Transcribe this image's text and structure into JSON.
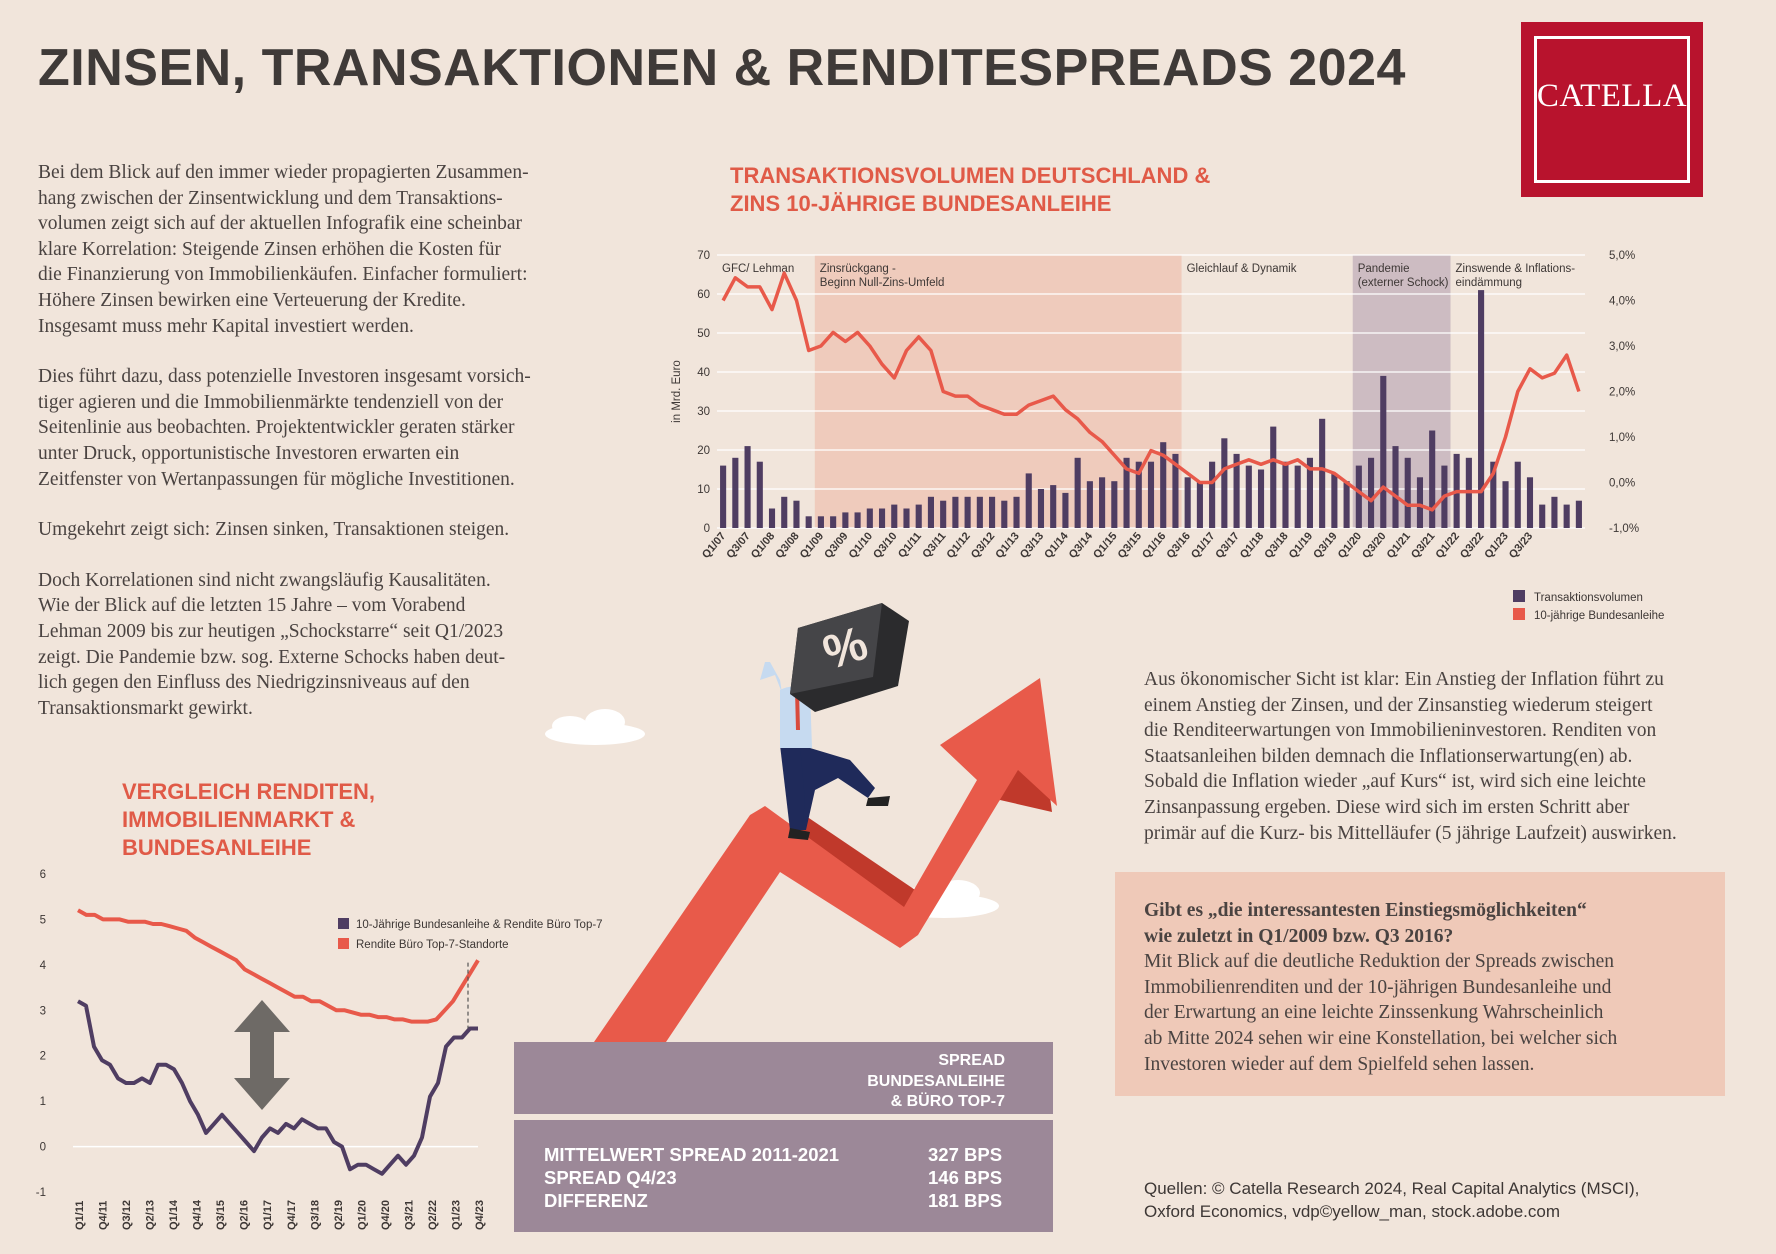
{
  "header": {
    "title": "ZINSEN, TRANSAKTIONEN & RENDITESPREADS 2024",
    "logo_text": "CATELLA"
  },
  "intro": {
    "paragraphs": [
      [
        "Bei dem Blick auf den immer wieder propagierten Zusammen-",
        "hang zwischen der Zinsentwicklung und dem Transaktions-",
        "volumen zeigt sich auf der aktuellen Infografik eine scheinbar",
        "klare Korrelation: Steigende Zinsen erhöhen die Kosten für",
        "die Finanzierung von Immobilienkäufen. Einfacher formuliert:",
        "Höhere Zinsen bewirken eine Verteuerung der Kredite.",
        "Insgesamt muss mehr Kapital investiert werden."
      ],
      [
        "Dies führt dazu, dass potenzielle Investoren insgesamt vorsich-",
        "tiger agieren und die Immobilienmärkte tendenziell von der",
        "Seitenlinie aus beobachten. Projektentwickler geraten stärker",
        "unter Druck, opportunistische Investoren erwarten ein",
        "Zeitfenster von Wertanpassungen für mögliche Investitionen."
      ],
      [
        "Umgekehrt zeigt sich: Zinsen sinken, Transaktionen steigen."
      ],
      [
        "Doch Korrelationen sind nicht zwangsläufig Kausalitäten.",
        "Wie der Blick auf die letzten 15 Jahre – vom Vorabend",
        "Lehman 2009 bis zur heutigen „Schockstarre“ seit Q1/2023",
        "zeigt. Die Pandemie bzw. sog. Externe Schocks haben deut-",
        "lich gegen den Einfluss des Niedrigzinsniveaus auf den",
        "Transaktionsmarkt gewirkt."
      ]
    ]
  },
  "right_text": [
    "Aus ökonomischer Sicht ist klar: Ein Anstieg der Inflation führt zu",
    "einem Anstieg der Zinsen, und der Zinsanstieg wiederum steigert",
    "die Renditeerwartungen von Immobilieninvestoren. Renditen von",
    "Staatsanleihen bilden demnach die Inflationserwartung(en) ab.",
    "Sobald die Inflation wieder „auf Kurs“ ist, wird sich eine leichte",
    "Zinsanpassung ergeben. Diese wird sich im ersten Schritt aber",
    "primär auf die Kurz- bis Mittelläufer (5 jährige Laufzeit) auswirken."
  ],
  "question_box": {
    "question": [
      "Gibt es „die interessantesten Einstiegsmöglichkeiten“",
      "wie zuletzt in Q1/2009 bzw. Q3 2016?"
    ],
    "answer": [
      "Mit Blick auf die deutliche Reduktion der Spreads zwischen",
      "Immobilienrenditen und der 10-jährigen Bundesanleihe und",
      "der Erwartung an eine leichte Zinssenkung Wahrscheinlich",
      "ab Mitte 2024 sehen wir eine Konstellation, bei welcher sich",
      "Investoren wieder auf dem Spielfeld sehen lassen."
    ]
  },
  "spread_box": {
    "title": [
      "SPREAD",
      "BUNDESANLEIHE",
      "& BÜRO TOP-7"
    ],
    "rows": [
      {
        "label": "MITTELWERT SPREAD 2011-2021",
        "value": "327 BPS"
      },
      {
        "label": "SPREAD Q4/23",
        "value": "146 BPS"
      },
      {
        "label": "DIFFERENZ",
        "value": "181 BPS"
      }
    ]
  },
  "illustration": {
    "badge_symbol": "%"
  },
  "sources": [
    "Quellen: © Catella Research 2024, Real Capital Analytics (MSCI),",
    "Oxford Economics, vdp©yellow_man, stock.adobe.com"
  ],
  "colors": {
    "bar": "#4f3d62",
    "line": "#e8594a",
    "accent": "#b8132d",
    "period_highlight": "#efcbbc",
    "period_pandemic": "#cdbcc2",
    "box": "#9c8898"
  },
  "chart_data": [
    {
      "type": "bar+line",
      "title": [
        "TRANSAKTIONSVOLUMEN DEUTSCHLAND &",
        "ZINS 10-JÄHRIGE BUNDESANLEIHE"
      ],
      "ylabel": "in Mrd. Euro",
      "ylim": [
        0,
        70
      ],
      "y2lim": [
        -1,
        5
      ],
      "yticks": [
        "0",
        "10",
        "20",
        "30",
        "40",
        "50",
        "60",
        "70"
      ],
      "y2ticks": [
        "-1,0%",
        "0,0%",
        "1,0%",
        "2,0%",
        "3,0%",
        "4,0%",
        "5,0%"
      ],
      "x_labels": [
        "Q1/07",
        "Q3/07",
        "Q1/08",
        "Q3/08",
        "Q1/09",
        "Q3/09",
        "Q1/10",
        "Q3/10",
        "Q1/11",
        "Q3/11",
        "Q1/12",
        "Q3/12",
        "Q1/13",
        "Q3/13",
        "Q1/14",
        "Q3/14",
        "Q1/15",
        "Q3/15",
        "Q1/16",
        "Q3/16",
        "Q1/17",
        "Q3/17",
        "Q1/18",
        "Q3/18",
        "Q1/19",
        "Q3/19",
        "Q1/20",
        "Q3/20",
        "Q1/21",
        "Q3/21",
        "Q1/22",
        "Q3/22",
        "Q1/23",
        "Q3/23"
      ],
      "periods": [
        {
          "label": "GFC/ Lehman",
          "from": 0,
          "to": 8,
          "shade": "none"
        },
        {
          "label": "Zinsrückgang - Beginn Null-Zins-Umfeld",
          "from": 8,
          "to": 38,
          "shade": "highlight"
        },
        {
          "label": "Gleichlauf & Dynamik",
          "from": 38,
          "to": 52,
          "shade": "none"
        },
        {
          "label": "Pandemie (externer Schock)",
          "from": 52,
          "to": 60,
          "shade": "pandemic"
        },
        {
          "label": "Zinswende & Inflations- eindämmung",
          "from": 60,
          "to": 68,
          "shade": "none"
        }
      ],
      "series": [
        {
          "name": "Transaktionsvolumen",
          "kind": "bar",
          "values": [
            16,
            18,
            21,
            17,
            5,
            8,
            7,
            3,
            3,
            3,
            4,
            4,
            5,
            5,
            6,
            5,
            6,
            8,
            7,
            8,
            8,
            8,
            8,
            7,
            8,
            14,
            10,
            11,
            9,
            18,
            12,
            13,
            12,
            18,
            17,
            17,
            22,
            19,
            13,
            12,
            17,
            23,
            19,
            16,
            15,
            26,
            17,
            16,
            18,
            28,
            14,
            12,
            16,
            18,
            39,
            21,
            18,
            13,
            25,
            16,
            19,
            18,
            61,
            17,
            12,
            17,
            13,
            6,
            8,
            6,
            7
          ]
        },
        {
          "name": "10-jährige Bundesanleihe",
          "kind": "line",
          "axis": "y2",
          "values": [
            4.0,
            4.5,
            4.3,
            4.3,
            3.8,
            4.6,
            4.0,
            2.9,
            3.0,
            3.3,
            3.1,
            3.3,
            3.0,
            2.6,
            2.3,
            2.9,
            3.2,
            2.9,
            2.0,
            1.9,
            1.9,
            1.7,
            1.6,
            1.5,
            1.5,
            1.7,
            1.8,
            1.9,
            1.6,
            1.4,
            1.1,
            0.9,
            0.6,
            0.3,
            0.2,
            0.7,
            0.6,
            0.4,
            0.2,
            0.0,
            0.0,
            0.3,
            0.4,
            0.5,
            0.4,
            0.5,
            0.4,
            0.5,
            0.3,
            0.3,
            0.2,
            0.0,
            -0.2,
            -0.4,
            -0.1,
            -0.3,
            -0.5,
            -0.5,
            -0.6,
            -0.3,
            -0.2,
            -0.2,
            -0.2,
            0.2,
            1.0,
            2.0,
            2.5,
            2.3,
            2.4,
            2.8,
            2.0
          ]
        }
      ],
      "legend": [
        "Transaktionsvolumen",
        "10-jährige Bundesanleihe"
      ],
      "legend_position": "bottom-right"
    },
    {
      "type": "line",
      "title": [
        "VERGLEICH RENDITEN,",
        "IMMOBILIENMARKT &",
        "BUNDESANLEIHE"
      ],
      "ylim": [
        -1,
        6
      ],
      "yticks": [
        "-1",
        "0",
        "1",
        "2",
        "3",
        "4",
        "5",
        "6"
      ],
      "x_labels": [
        "Q1/11",
        "Q4/11",
        "Q3/12",
        "Q2/13",
        "Q1/14",
        "Q4/14",
        "Q3/15",
        "Q2/16",
        "Q1/17",
        "Q4/17",
        "Q3/18",
        "Q2/19",
        "Q1/20",
        "Q4/20",
        "Q3/21",
        "Q2/22",
        "Q1/23",
        "Q4/23"
      ],
      "series": [
        {
          "name": "10-Jährige Bundesanleihe & Rendite Büro Top-7",
          "values": [
            3.2,
            3.1,
            2.2,
            1.9,
            1.8,
            1.5,
            1.4,
            1.4,
            1.5,
            1.4,
            1.8,
            1.8,
            1.7,
            1.4,
            1.0,
            0.7,
            0.3,
            0.5,
            0.7,
            0.5,
            0.3,
            0.1,
            -0.1,
            0.2,
            0.4,
            0.3,
            0.5,
            0.4,
            0.6,
            0.5,
            0.4,
            0.4,
            0.1,
            0.0,
            -0.5,
            -0.4,
            -0.4,
            -0.5,
            -0.6,
            -0.4,
            -0.2,
            -0.4,
            -0.2,
            0.2,
            1.1,
            1.4,
            2.2,
            2.4,
            2.4,
            2.6,
            2.6
          ]
        },
        {
          "name": "Rendite Büro Top-7-Standorte",
          "values": [
            5.2,
            5.1,
            5.1,
            5.0,
            5.0,
            5.0,
            4.95,
            4.95,
            4.95,
            4.9,
            4.9,
            4.85,
            4.8,
            4.75,
            4.6,
            4.5,
            4.4,
            4.3,
            4.2,
            4.1,
            3.9,
            3.8,
            3.7,
            3.6,
            3.5,
            3.4,
            3.3,
            3.3,
            3.2,
            3.2,
            3.1,
            3.0,
            3.0,
            2.95,
            2.9,
            2.9,
            2.85,
            2.85,
            2.8,
            2.8,
            2.75,
            2.75,
            2.75,
            2.8,
            3.0,
            3.2,
            3.5,
            3.8,
            4.1
          ]
        }
      ],
      "legend": [
        "10-Jährige Bundesanleihe & Rendite Büro Top-7",
        "Rendite Büro Top-7-Standorte"
      ],
      "legend_position": "top-right"
    }
  ]
}
